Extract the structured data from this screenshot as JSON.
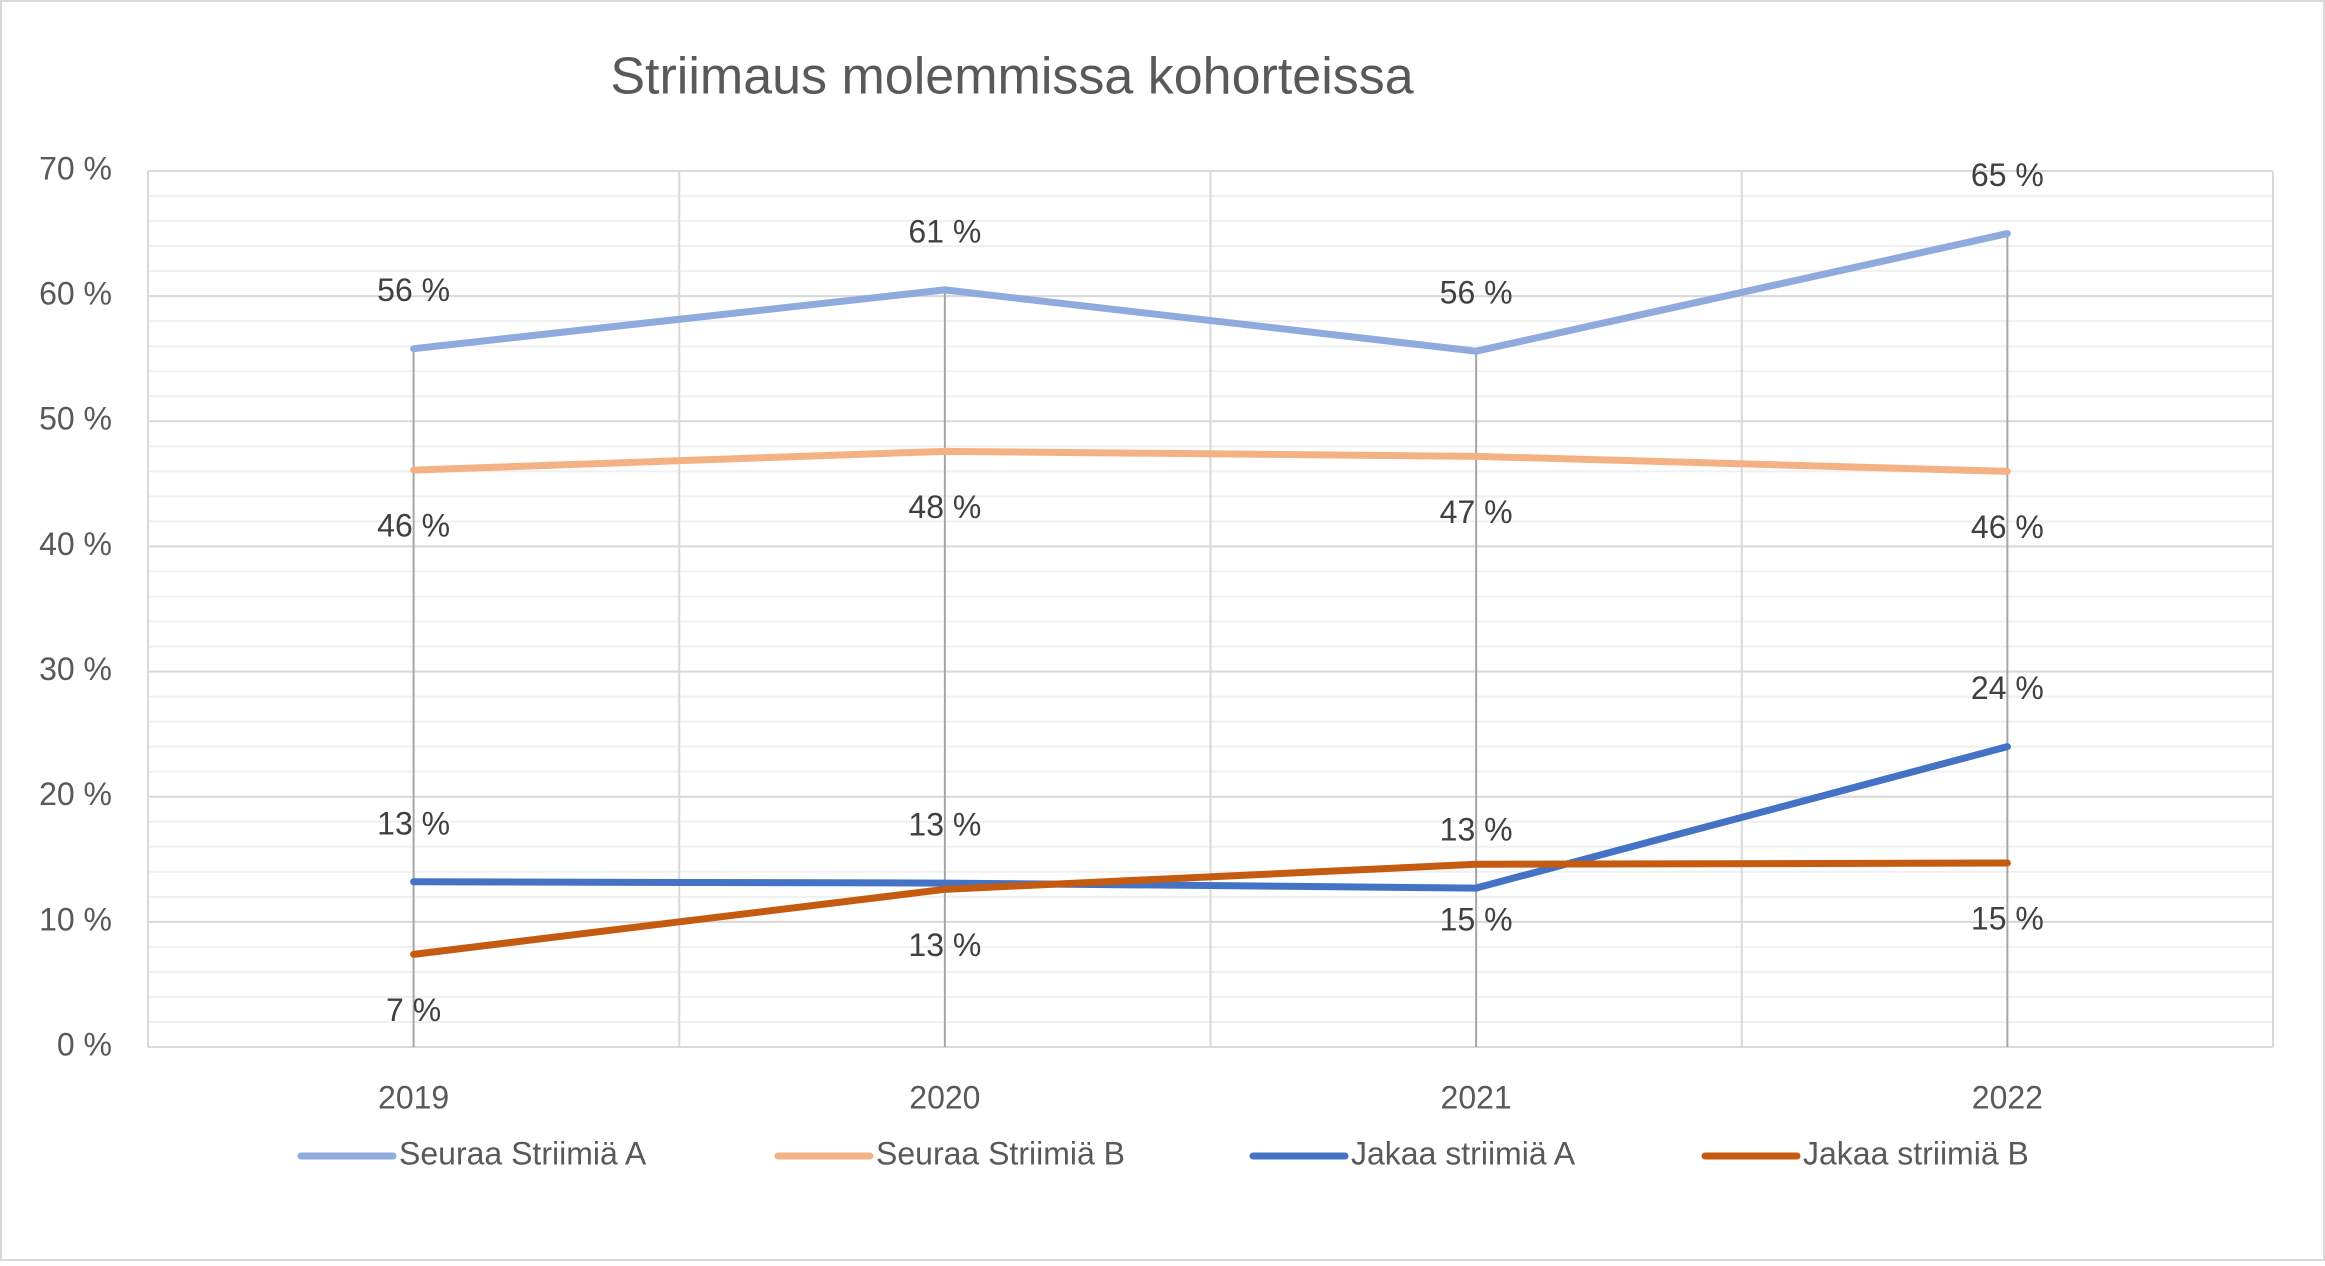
{
  "chart_data": {
    "type": "line",
    "title": "Striimaus molemmissa kohorteissa",
    "categories": [
      "2019",
      "2020",
      "2021",
      "2022"
    ],
    "series": [
      {
        "name": "Seuraa Striimiä A",
        "color": "#8faadc",
        "values": [
          55.8,
          60.5,
          55.6,
          65
        ],
        "value_labels": [
          "56 %",
          "61 %",
          "56 %",
          "65 %"
        ],
        "label_position": "above"
      },
      {
        "name": "Seuraa Striimiä B",
        "color": "#f4b183",
        "values": [
          46.1,
          47.6,
          47.2,
          46.0
        ],
        "value_labels": [
          "46 %",
          "48 %",
          "47 %",
          "46 %"
        ],
        "label_position": "below"
      },
      {
        "name": "Jakaa striimiä A",
        "color": "#4472c4",
        "values": [
          13.2,
          13.1,
          12.7,
          24
        ],
        "value_labels": [
          "13 %",
          "13 %",
          "13 %",
          "24 %"
        ],
        "label_position": "above"
      },
      {
        "name": "Jakaa striimiä B",
        "color": "#c55a11",
        "values": [
          7.4,
          12.6,
          14.6,
          14.7
        ],
        "value_labels": [
          "7 %",
          "13 %",
          "15 %",
          "15 %"
        ],
        "label_position": "below"
      }
    ],
    "ylim": [
      0,
      70
    ],
    "yticks": [
      {
        "value": 0,
        "label": "0 %"
      },
      {
        "value": 10,
        "label": "10 %"
      },
      {
        "value": 20,
        "label": "20 %"
      },
      {
        "value": 30,
        "label": "30 %"
      },
      {
        "value": 40,
        "label": "40 %"
      },
      {
        "value": 50,
        "label": "50 %"
      },
      {
        "value": 60,
        "label": "60 %"
      },
      {
        "value": 70,
        "label": "70 %"
      }
    ],
    "minor_grid_step": 2,
    "grid": true,
    "drop_lines": true,
    "legend": "bottom"
  }
}
